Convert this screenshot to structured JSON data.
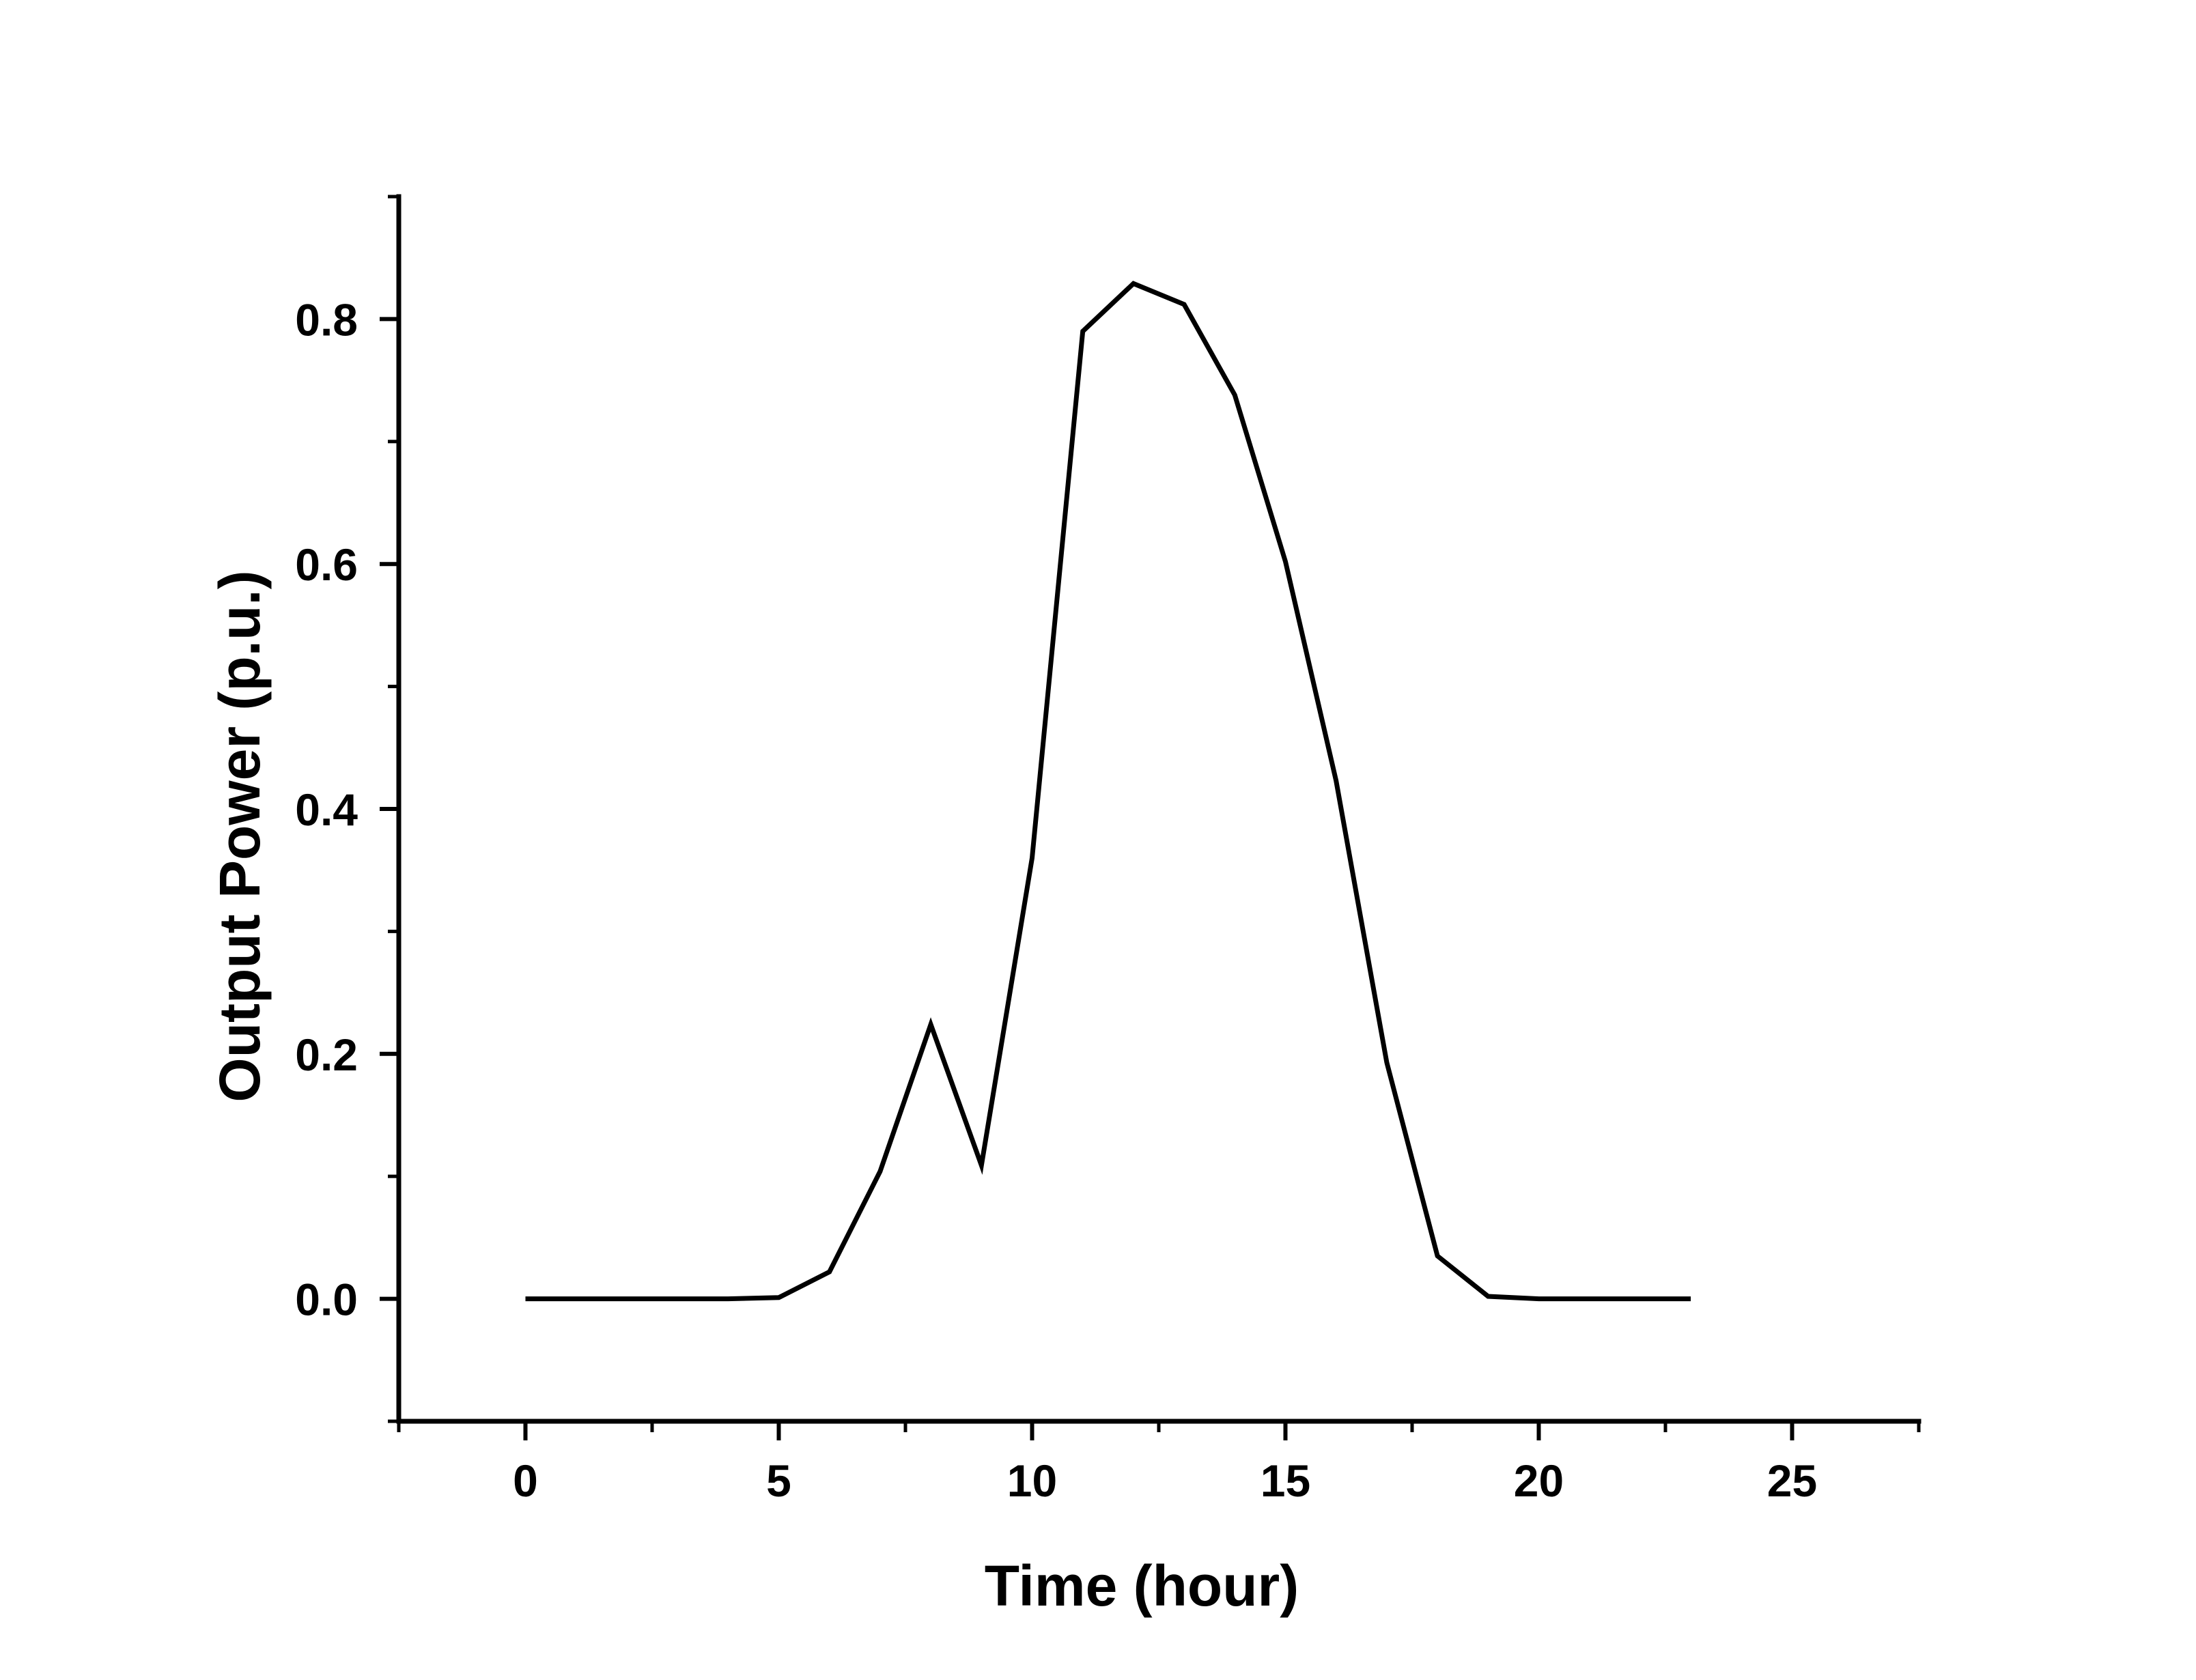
{
  "chart_data": {
    "type": "line",
    "title": "",
    "xlabel": "Time (hour)",
    "ylabel": "Output Power (p.u.)",
    "xlim": [
      -2.5,
      27.5
    ],
    "ylim": [
      -0.1,
      0.9
    ],
    "x_ticks": [
      0,
      5,
      10,
      15,
      20,
      25
    ],
    "x_tick_labels": [
      "0",
      "5",
      "10",
      "15",
      "20",
      "25"
    ],
    "x_minor_ticks": [
      -2.5,
      2.5,
      7.5,
      12.5,
      17.5,
      22.5,
      27.5
    ],
    "y_ticks": [
      0.0,
      0.2,
      0.4,
      0.6,
      0.8
    ],
    "y_tick_labels": [
      "0.0",
      "0.2",
      "0.4",
      "0.6",
      "0.8"
    ],
    "y_minor_ticks": [
      -0.1,
      0.1,
      0.3,
      0.5,
      0.7,
      0.9
    ],
    "grid": false,
    "line_color": "#000000",
    "series": [
      {
        "x": [
          0,
          1,
          2,
          3,
          4,
          5,
          6,
          7,
          8,
          9,
          10,
          11,
          12,
          13,
          14,
          15,
          16,
          17,
          18,
          19,
          20,
          21,
          22,
          23
        ],
        "values": [
          0.0,
          0.0,
          0.0,
          0.0,
          0.0,
          0.001,
          0.022,
          0.104,
          0.224,
          0.109,
          0.36,
          0.79,
          0.829,
          0.812,
          0.738,
          0.602,
          0.423,
          0.193,
          0.035,
          0.002,
          0.0,
          0.0,
          0.0,
          0.0
        ]
      }
    ]
  }
}
